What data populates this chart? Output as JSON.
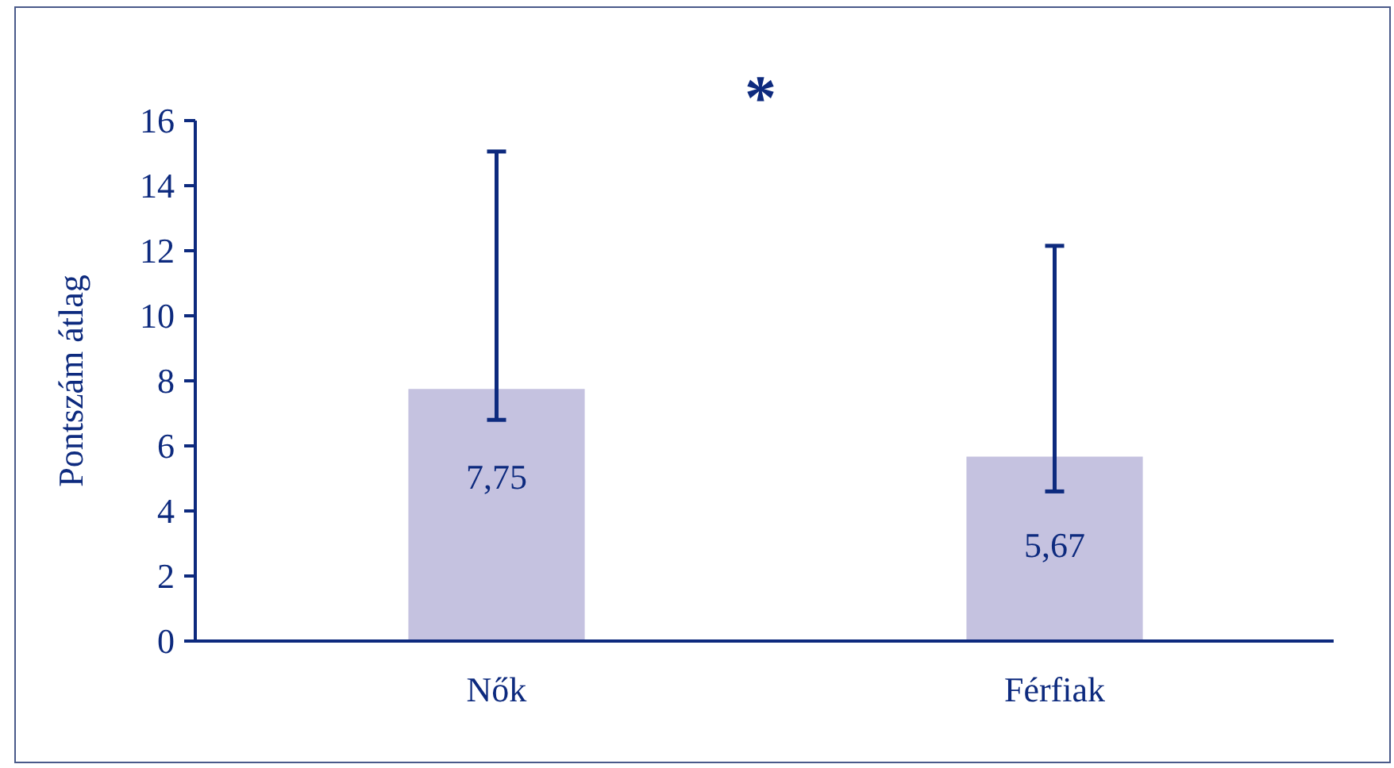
{
  "chart_data": {
    "type": "bar",
    "ylabel": "Pontszám átlag",
    "categories": [
      "Nők",
      "Férfiak"
    ],
    "values": [
      7.75,
      5.67
    ],
    "value_labels": [
      "7,75",
      "5,67"
    ],
    "errors": [
      [
        6.8,
        15.05
      ],
      [
        4.6,
        12.15
      ]
    ],
    "color": "#c5c2e0",
    "ylim": [
      0,
      16
    ],
    "yticks": [
      0,
      2,
      4,
      6,
      8,
      10,
      12,
      14,
      16
    ],
    "annotations": [
      "*"
    ]
  }
}
